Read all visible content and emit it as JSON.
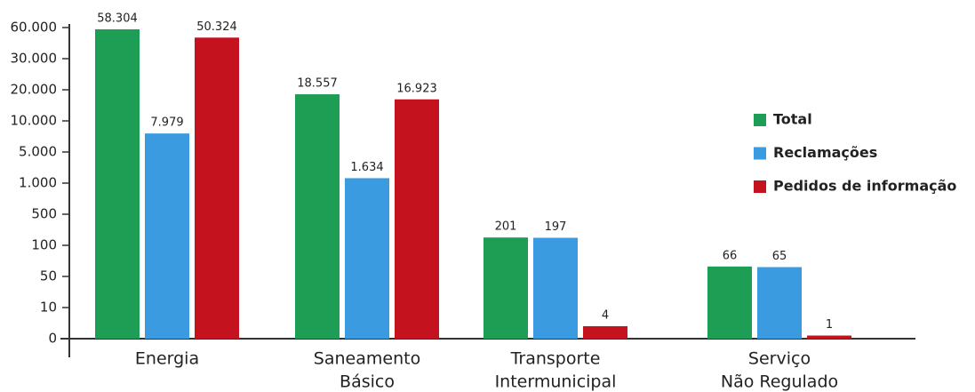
{
  "chart_data": {
    "type": "bar",
    "categories": [
      [
        "Energia"
      ],
      [
        "Saneamento",
        "Básico"
      ],
      [
        "Transporte",
        "Intermunicipal"
      ],
      [
        "Serviço",
        "Não Regulado"
      ]
    ],
    "series": [
      {
        "name": "Total",
        "color": "#1e9e55",
        "values": [
          58304,
          18557,
          201,
          66
        ],
        "value_labels": [
          "58.304",
          "18.557",
          "201",
          "66"
        ]
      },
      {
        "name": "Reclamações",
        "color": "#3a9be0",
        "values": [
          7979,
          1634,
          197,
          65
        ],
        "value_labels": [
          "7.979",
          "1.634",
          "197",
          "65"
        ]
      },
      {
        "name": "Pedidos de informação",
        "color": "#c4121f",
        "values": [
          50324,
          16923,
          4,
          1
        ],
        "value_labels": [
          "50.324",
          "16.923",
          "4",
          "1"
        ]
      }
    ],
    "ylim": [
      0,
      60000
    ],
    "yticks": [
      0,
      10,
      50,
      100,
      500,
      {
        "value": 1000,
        "label": "1.000"
      },
      {
        "value": 5000,
        "label": "5.000"
      },
      {
        "value": 10000,
        "label": "10.000"
      },
      {
        "value": 20000,
        "label": "20.000"
      },
      {
        "value": 30000,
        "label": "30.000"
      },
      {
        "value": 60000,
        "label": "60.000"
      }
    ]
  }
}
